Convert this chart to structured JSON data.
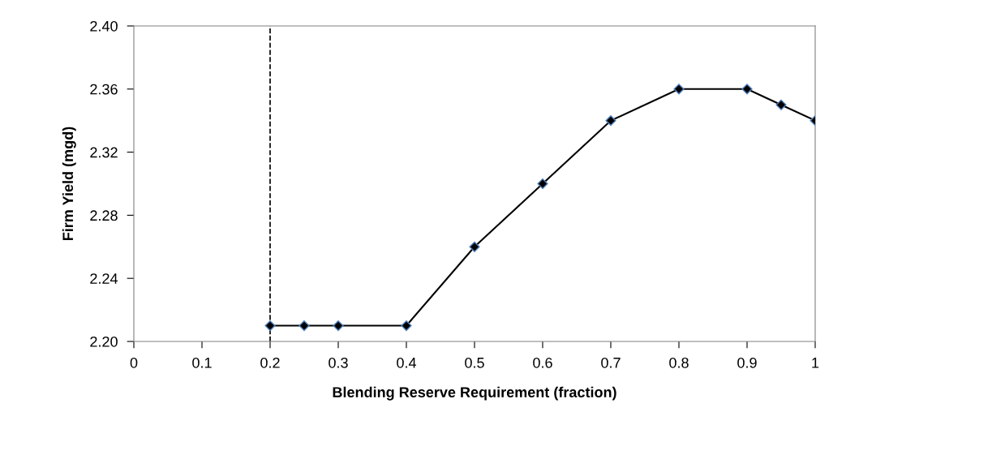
{
  "chart_data": {
    "type": "line",
    "xlabel": "Blending Reserve Requirement (fraction)",
    "ylabel": "Firm Yield (mgd)",
    "x": [
      0.2,
      0.25,
      0.3,
      0.4,
      0.5,
      0.6,
      0.7,
      0.8,
      0.9,
      0.95,
      1
    ],
    "series": [
      {
        "color": "#000000",
        "values": [
          2.21,
          2.21,
          2.21,
          2.21,
          2.26,
          2.3,
          2.34,
          2.36,
          2.36,
          2.35,
          2.34
        ]
      }
    ],
    "xlim": [
      0,
      1
    ],
    "xticks": [
      0,
      0.1,
      0.2,
      0.3,
      0.4,
      0.5,
      0.6,
      0.7,
      0.8,
      0.9,
      1
    ],
    "ylim": [
      2.2,
      2.4
    ],
    "yticks": [
      {
        "value": 2.2,
        "label": "2.20"
      },
      {
        "value": 2.24,
        "label": "2.24"
      },
      {
        "value": 2.28,
        "label": "2.28"
      },
      {
        "value": 2.32,
        "label": "2.32"
      },
      {
        "value": 2.36,
        "label": "2.36"
      },
      {
        "value": 2.4,
        "label": "2.40"
      }
    ],
    "ref_lines": [
      {
        "axis": "x",
        "value": 0.2,
        "color": "#000000",
        "line_style": "dashed"
      }
    ],
    "marker": "diamond",
    "line_style": "solid",
    "grid": false,
    "legend": false
  }
}
